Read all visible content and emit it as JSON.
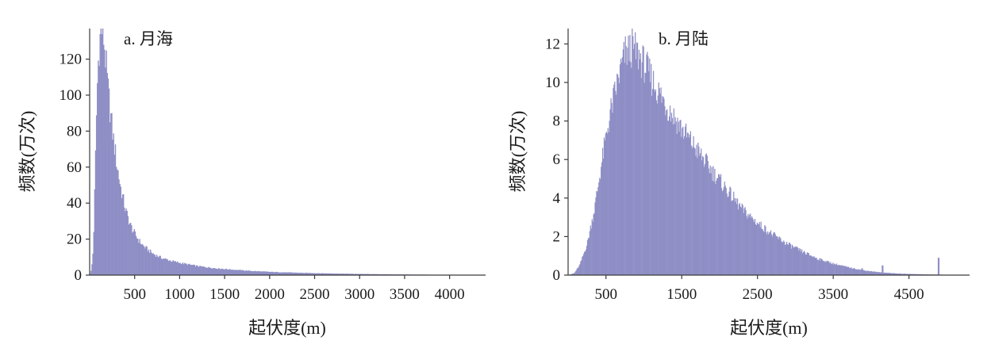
{
  "colors": {
    "bar": "#8f8fc6",
    "axis": "#3a3a3a"
  },
  "chart_data": [
    {
      "type": "bar",
      "title": "a. 月海",
      "xlabel": "起伏度(m)",
      "ylabel": "频数(万次)",
      "xlim": [
        0,
        4400
      ],
      "ylim": [
        0,
        137
      ],
      "xticks": [
        500,
        1000,
        1500,
        2000,
        2500,
        3000,
        3500,
        4000
      ],
      "yticks": [
        0,
        20,
        40,
        60,
        80,
        100,
        120
      ],
      "bin_width": 10,
      "curve": [
        [
          0,
          0
        ],
        [
          20,
          3
        ],
        [
          40,
          15
        ],
        [
          60,
          55
        ],
        [
          80,
          100
        ],
        [
          100,
          125
        ],
        [
          120,
          134
        ],
        [
          140,
          137
        ],
        [
          160,
          130
        ],
        [
          180,
          118
        ],
        [
          200,
          105
        ],
        [
          230,
          90
        ],
        [
          260,
          77
        ],
        [
          300,
          62
        ],
        [
          350,
          47
        ],
        [
          400,
          36
        ],
        [
          450,
          28
        ],
        [
          500,
          23
        ],
        [
          550,
          19
        ],
        [
          600,
          16
        ],
        [
          700,
          12
        ],
        [
          800,
          9.5
        ],
        [
          900,
          8
        ],
        [
          1000,
          6.8
        ],
        [
          1200,
          5
        ],
        [
          1400,
          3.8
        ],
        [
          1600,
          3
        ],
        [
          1800,
          2.3
        ],
        [
          2000,
          1.8
        ],
        [
          2400,
          1.2
        ],
        [
          2800,
          0.8
        ],
        [
          3200,
          0.5
        ],
        [
          3600,
          0.3
        ],
        [
          4000,
          0.15
        ],
        [
          4400,
          0.05
        ]
      ],
      "legend": "none",
      "grid": false
    },
    {
      "type": "bar",
      "title": "b. 月陆",
      "xlabel": "起伏度(m)",
      "ylabel": "频数(万次)",
      "xlim": [
        0,
        5300
      ],
      "ylim": [
        0,
        12.8
      ],
      "xticks": [
        500,
        1500,
        2500,
        3500,
        4500
      ],
      "yticks": [
        0,
        2,
        4,
        6,
        8,
        10,
        12
      ],
      "bin_width": 10,
      "curve": [
        [
          0,
          0
        ],
        [
          80,
          0.1
        ],
        [
          150,
          0.5
        ],
        [
          250,
          1.6
        ],
        [
          350,
          3.5
        ],
        [
          450,
          6
        ],
        [
          550,
          8.3
        ],
        [
          650,
          10
        ],
        [
          750,
          11.5
        ],
        [
          850,
          11.8
        ],
        [
          950,
          11.3
        ],
        [
          1050,
          10.6
        ],
        [
          1150,
          9.8
        ],
        [
          1300,
          8.8
        ],
        [
          1500,
          7.6
        ],
        [
          1700,
          6.5
        ],
        [
          1900,
          5.4
        ],
        [
          2100,
          4.4
        ],
        [
          2300,
          3.4
        ],
        [
          2500,
          2.7
        ],
        [
          2700,
          2.1
        ],
        [
          2900,
          1.6
        ],
        [
          3100,
          1.2
        ],
        [
          3300,
          0.85
        ],
        [
          3500,
          0.6
        ],
        [
          3700,
          0.4
        ],
        [
          3900,
          0.25
        ],
        [
          4100,
          0.15
        ],
        [
          4400,
          0.07
        ],
        [
          4800,
          0.03
        ],
        [
          5300,
          0
        ]
      ],
      "spikes": [
        [
          4880,
          0.9
        ],
        [
          4140,
          0.5
        ],
        [
          3870,
          0.35
        ]
      ],
      "legend": "none",
      "grid": false
    }
  ]
}
